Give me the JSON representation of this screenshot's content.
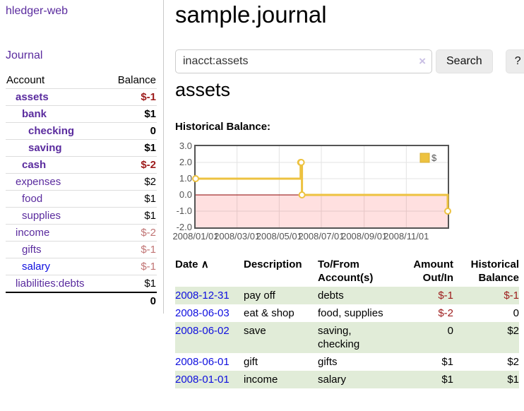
{
  "app": {
    "title": "hledger-web"
  },
  "sidebar": {
    "journal_link": "Journal",
    "header": {
      "account": "Account",
      "balance": "Balance"
    },
    "accounts": [
      {
        "name": "assets",
        "depth": 1,
        "balance": "$-1",
        "bold": true,
        "balance_style": "neg-strong",
        "link_style": "purple"
      },
      {
        "name": "bank",
        "depth": 2,
        "balance": "$1",
        "bold": true,
        "balance_style": "",
        "link_style": "purple"
      },
      {
        "name": "checking",
        "depth": 3,
        "balance": "0",
        "bold": true,
        "balance_style": "",
        "link_style": "purple"
      },
      {
        "name": "saving",
        "depth": 3,
        "balance": "$1",
        "bold": true,
        "balance_style": "",
        "link_style": "purple"
      },
      {
        "name": "cash",
        "depth": 2,
        "balance": "$-2",
        "bold": true,
        "balance_style": "neg-strong",
        "link_style": "purple"
      },
      {
        "name": "expenses",
        "depth": 1,
        "balance": "$2",
        "bold": false,
        "balance_style": "",
        "link_style": "purple"
      },
      {
        "name": "food",
        "depth": 2,
        "balance": "$1",
        "bold": false,
        "balance_style": "",
        "link_style": "purple"
      },
      {
        "name": "supplies",
        "depth": 2,
        "balance": "$1",
        "bold": false,
        "balance_style": "",
        "link_style": "purple"
      },
      {
        "name": "income",
        "depth": 1,
        "balance": "$-2",
        "bold": false,
        "balance_style": "neg-soft",
        "link_style": "purple"
      },
      {
        "name": "gifts",
        "depth": 2,
        "balance": "$-1",
        "bold": false,
        "balance_style": "neg-soft",
        "link_style": "purple"
      },
      {
        "name": "salary",
        "depth": 2,
        "balance": "$-1",
        "bold": false,
        "balance_style": "neg-soft",
        "link_style": "blue"
      },
      {
        "name": "liabilities:debts",
        "depth": 1,
        "balance": "$1",
        "bold": false,
        "balance_style": "",
        "link_style": "purple"
      }
    ],
    "total": "0"
  },
  "header": {
    "title": "sample.journal"
  },
  "search": {
    "value": "inacct:assets",
    "clear_icon": "×",
    "button_label": "Search",
    "help_label": "?"
  },
  "account_page": {
    "title": "assets",
    "chart_label": "Historical Balance:"
  },
  "chart_data": {
    "type": "line",
    "title": "Historical Balance",
    "step": true,
    "series": [
      {
        "name": "$",
        "color": "#edc240",
        "points": [
          [
            "2008-01-01",
            1
          ],
          [
            "2008-06-01",
            2
          ],
          [
            "2008-06-02",
            2
          ],
          [
            "2008-06-03",
            0
          ],
          [
            "2008-12-31",
            -1
          ]
        ]
      }
    ],
    "xrange": [
      "2008-01-01",
      "2008-12-31"
    ],
    "ylim": [
      -2,
      3
    ],
    "yticks": [
      "3.0",
      "2.0",
      "1.0",
      "0.0",
      "-1.0",
      "-2.0"
    ],
    "xticks": [
      "2008/01/01",
      "2008/03/01",
      "2008/05/01",
      "2008/07/01",
      "2008/09/01",
      "2008/11/01"
    ],
    "legend": {
      "label": "$",
      "position": "top-right"
    },
    "grid": true,
    "negative_region_color": "#ffdddd",
    "zero_line_color": "#8b0000",
    "gridline_color": "#e3e3e3",
    "border_color": "#545454"
  },
  "register": {
    "columns": {
      "date": "Date",
      "description": "Description",
      "accounts": "To/From Account(s)",
      "amount": "Amount Out/In",
      "balance": "Historical Balance"
    },
    "sort_indicator": "∧",
    "rows": [
      {
        "date": "2008-12-31",
        "description": "pay off",
        "accounts": [
          "debts"
        ],
        "amount": "$-1",
        "balance": "$-1",
        "amount_negative": true,
        "balance_negative": true,
        "shaded": true
      },
      {
        "date": "2008-06-03",
        "description": "eat & shop",
        "accounts": [
          "food, supplies"
        ],
        "amount": "$-2",
        "balance": "0",
        "amount_negative": true,
        "balance_negative": false,
        "shaded": false
      },
      {
        "date": "2008-06-02",
        "description": "save",
        "accounts": [
          "saving,",
          "checking"
        ],
        "amount": "0",
        "balance": "$2",
        "amount_negative": false,
        "balance_negative": false,
        "shaded": true
      },
      {
        "date": "2008-06-01",
        "description": "gift",
        "accounts": [
          "gifts"
        ],
        "amount": "$1",
        "balance": "$2",
        "amount_negative": false,
        "balance_negative": false,
        "shaded": false
      },
      {
        "date": "2008-01-01",
        "description": "income",
        "accounts": [
          "salary"
        ],
        "amount": "$1",
        "balance": "$1",
        "amount_negative": false,
        "balance_negative": false,
        "shaded": true
      }
    ]
  }
}
